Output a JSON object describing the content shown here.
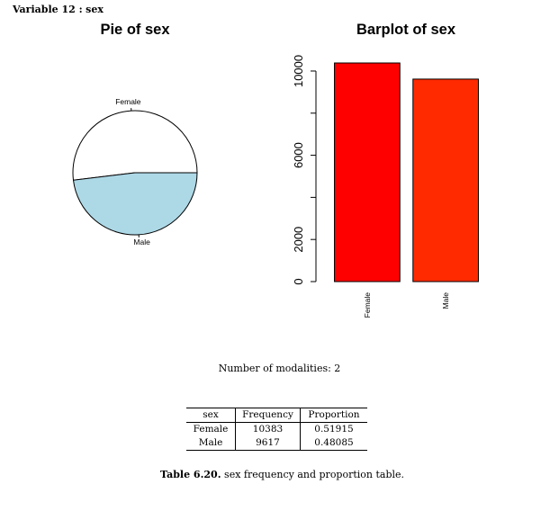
{
  "heading": {
    "label": "Variable 12 :",
    "name": "sex"
  },
  "chart_data": [
    {
      "type": "pie",
      "title": "Pie of sex",
      "slices": [
        {
          "label": "Female",
          "value": 10383,
          "color": "#ffffff"
        },
        {
          "label": "Male",
          "value": 9617,
          "color": "#add8e6"
        }
      ]
    },
    {
      "type": "bar",
      "title": "Barplot of sex",
      "categories": [
        "Female",
        "Male"
      ],
      "values": [
        10383,
        9617
      ],
      "colors": [
        "#ff0000",
        "#ff2a00"
      ],
      "ylim": [
        0,
        10383
      ],
      "yticks": [
        0,
        2000,
        4000,
        6000,
        8000,
        10000
      ],
      "ytick_labels": [
        "0",
        "2000",
        "6000",
        "10000"
      ],
      "ytick_label_values": [
        0,
        2000,
        6000,
        10000
      ]
    }
  ],
  "modalities": "Number of modalities: 2",
  "table": {
    "headers": [
      "sex",
      "Frequency",
      "Proportion"
    ],
    "rows": [
      [
        "Female",
        "10383",
        "0.51915"
      ],
      [
        "Male",
        "9617",
        "0.48085"
      ]
    ]
  },
  "caption": {
    "label": "Table 6.20.",
    "text": "sex frequency and proportion table."
  }
}
